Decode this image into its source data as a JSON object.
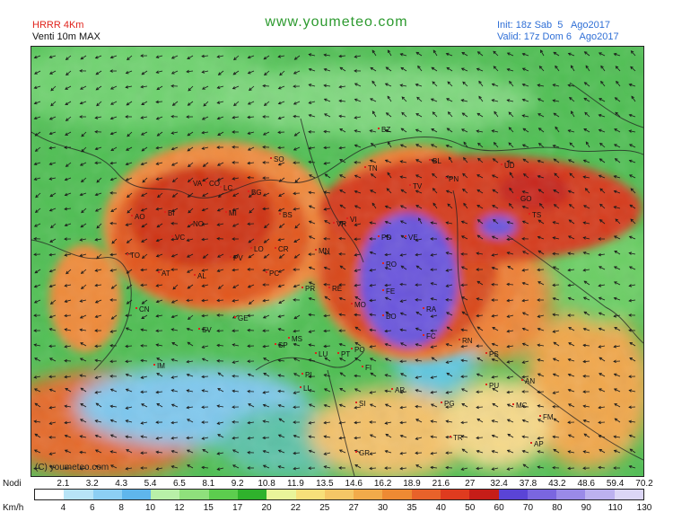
{
  "header": {
    "model": "HRRR 4Km",
    "field": "Venti 10m MAX",
    "site": "www.youmeteo.com",
    "init_label": "Init:",
    "init_value": "18z Sab  5   Ago2017",
    "valid_label": "Valid:",
    "valid_value": "17z Dom 6   Ago2017"
  },
  "map": {
    "copyright": "(C) youmeteo.com",
    "cities": [
      "SO",
      "BZ",
      "TN",
      "BL",
      "UD",
      "TS",
      "VA",
      "CO",
      "LC",
      "BG",
      "BS",
      "VR",
      "VI",
      "TV",
      "PN",
      "GO",
      "MI",
      "NO",
      "VC",
      "BI",
      "AO",
      "TO",
      "CN",
      "AT",
      "AL",
      "PV",
      "LO",
      "CR",
      "MN",
      "PD",
      "VE",
      "RO",
      "FE",
      "BO",
      "MO",
      "RE",
      "PR",
      "PC",
      "GE",
      "SV",
      "IM",
      "SP",
      "MS",
      "LU",
      "PT",
      "PO",
      "FI",
      "PI",
      "LI",
      "AR",
      "SI",
      "GR",
      "RA",
      "FC",
      "RN",
      "PS",
      "PU",
      "AN",
      "MC",
      "FM",
      "AP",
      "PG",
      "TR"
    ],
    "colors": {
      "low": "#5fbf4d",
      "mid": "#f2a93b",
      "high": "#d6431e",
      "peak": "#6a56e0",
      "sea": "#a8d8f0"
    }
  },
  "legend": {
    "knots_label": "Nodi",
    "kmh_label": "Km/h",
    "knots": [
      "2.1",
      "3.2",
      "4.3",
      "5.4",
      "6.5",
      "8.1",
      "9.2",
      "10.8",
      "11.9",
      "13.5",
      "14.6",
      "16.2",
      "18.9",
      "21.6",
      "27",
      "32.4",
      "37.8",
      "43.2",
      "48.6",
      "59.4",
      "70.2"
    ],
    "kmh": [
      "4",
      "6",
      "8",
      "10",
      "12",
      "15",
      "17",
      "20",
      "22",
      "25",
      "27",
      "30",
      "35",
      "40",
      "50",
      "60",
      "70",
      "80",
      "90",
      "110",
      "130"
    ],
    "colors": [
      "#ffffff",
      "#b7e4f7",
      "#8ccff3",
      "#5fb6ec",
      "#b8f0a8",
      "#8fe07c",
      "#5ccd4e",
      "#2fb22c",
      "#e9f59a",
      "#f7e07a",
      "#f5c766",
      "#f2ab4a",
      "#ee8a33",
      "#e8622a",
      "#df3b1f",
      "#c61d18",
      "#5a44d6",
      "#7a66e0",
      "#9a8ae8",
      "#bcb1ef",
      "#dcd6f6"
    ]
  }
}
